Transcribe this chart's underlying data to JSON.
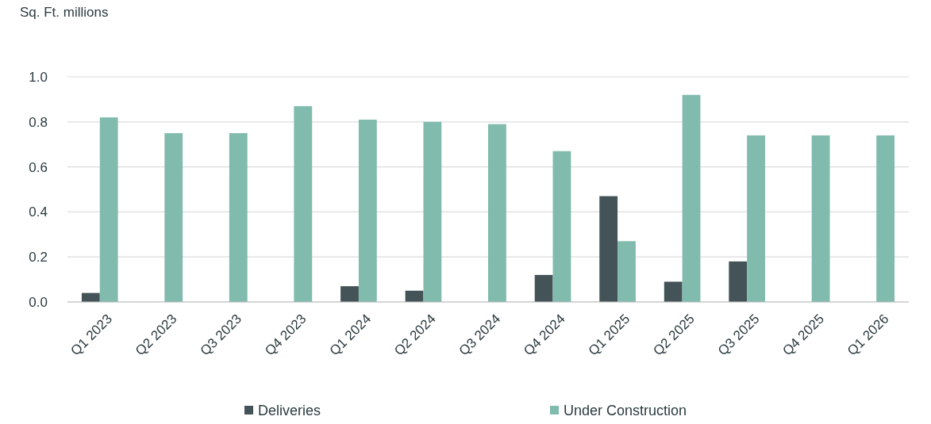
{
  "chart_data": {
    "type": "bar",
    "ylabel": "Sq. Ft. millions",
    "categories": [
      "Q1 2023",
      "Q2 2023",
      "Q3 2023",
      "Q4 2023",
      "Q1 2024",
      "Q2 2024",
      "Q3 2024",
      "Q4 2024",
      "Q1 2025",
      "Q2 2025",
      "Q3 2025",
      "Q4 2025",
      "Q1 2026"
    ],
    "series": [
      {
        "name": "Deliveries",
        "color": "#445357",
        "values": [
          0.04,
          0,
          0,
          0,
          0.07,
          0.05,
          0,
          0.12,
          0.47,
          0.09,
          0.18,
          0,
          0
        ]
      },
      {
        "name": "Under Construction",
        "color": "#80bbad",
        "values": [
          0.82,
          0.75,
          0.75,
          0.87,
          0.81,
          0.8,
          0.79,
          0.67,
          0.27,
          0.92,
          0.74,
          0.74,
          0.74
        ]
      }
    ],
    "ylim": [
      0,
      1
    ],
    "yticks": [
      {
        "value": 0,
        "label": "0.0"
      },
      0.2,
      0.4,
      0.6,
      0.8,
      {
        "value": 1,
        "label": "1.0"
      }
    ],
    "grid": "y",
    "legend": "bottom"
  }
}
